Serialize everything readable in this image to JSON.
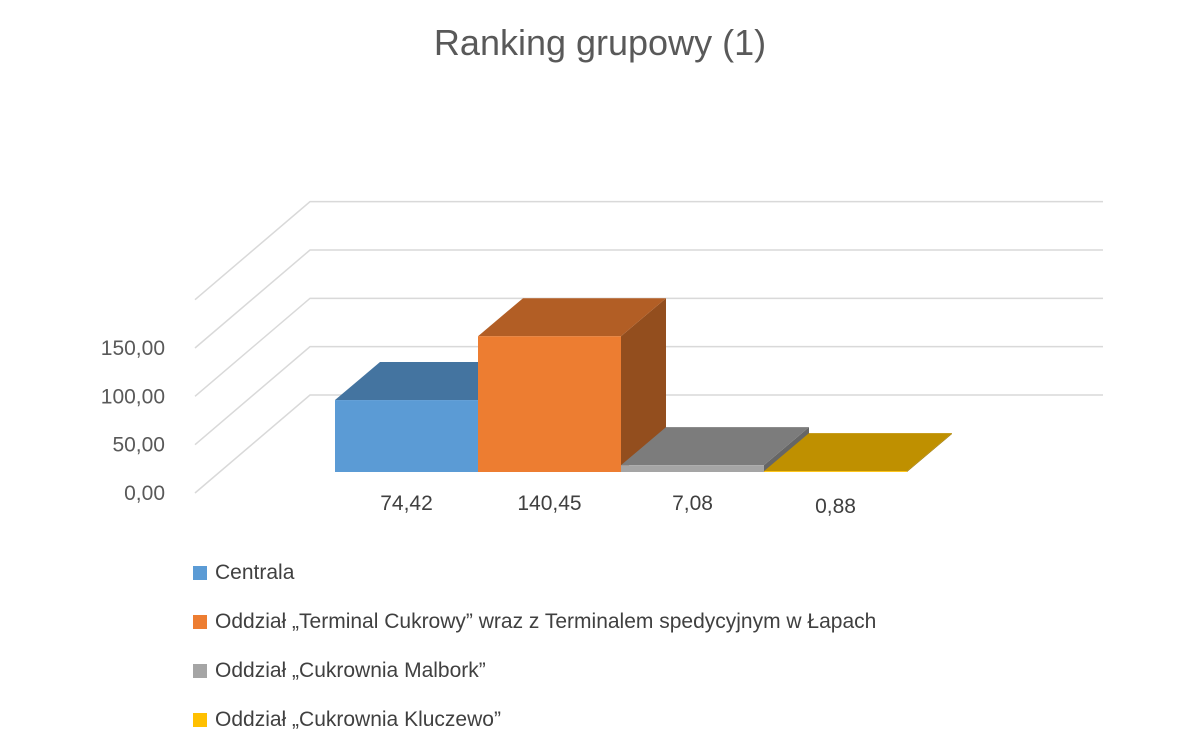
{
  "chart_data": {
    "type": "bar",
    "title": "Ranking grupowy (1)",
    "xlabel": "",
    "ylabel": "",
    "ylim": [
      0,
      150
    ],
    "yticks": [
      "0,00",
      "50,00",
      "100,00",
      "150,00"
    ],
    "grid": true,
    "legend": "bottom-left",
    "series": [
      {
        "name": "Centrala",
        "value": 74.42,
        "label": "74,42",
        "color": "#5b9bd5"
      },
      {
        "name": "Oddział „Terminal Cukrowy” wraz z Terminalem spedycyjnym w Łapach",
        "value": 140.45,
        "label": "140,45",
        "color": "#ed7d31"
      },
      {
        "name": "Oddział „Cukrownia Malbork”",
        "value": 7.08,
        "label": "7,08",
        "color": "#a5a5a5"
      },
      {
        "name": "Oddział „Cukrownia Kluczewo”",
        "value": 0.88,
        "label": "0,88",
        "color": "#ffc000"
      }
    ]
  }
}
